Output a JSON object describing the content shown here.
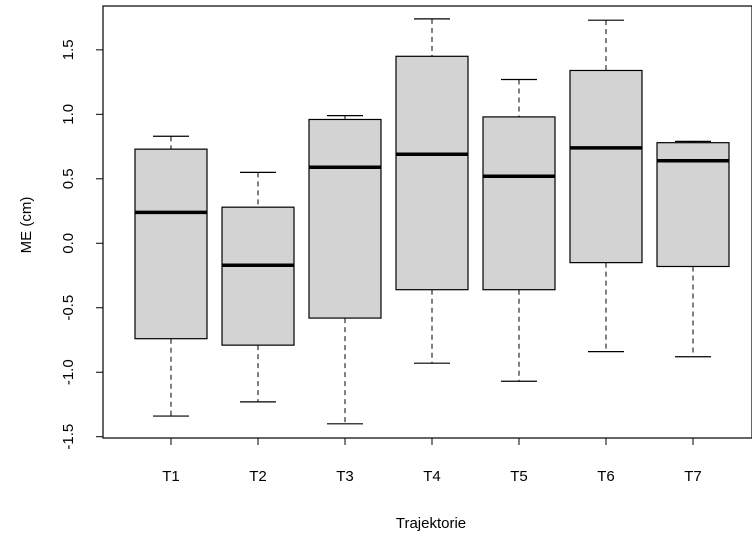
{
  "chart_data": {
    "type": "box",
    "title": "",
    "xlabel": "Trajektorie",
    "ylabel": "ME (cm)",
    "categories": [
      "T1",
      "T2",
      "T3",
      "T4",
      "T5",
      "T6",
      "T7"
    ],
    "boxes": [
      {
        "category": "T1",
        "min": -1.34,
        "q1": -0.74,
        "median": 0.24,
        "q3": 0.73,
        "max": 0.83
      },
      {
        "category": "T2",
        "min": -1.23,
        "q1": -0.79,
        "median": -0.17,
        "q3": 0.28,
        "max": 0.55
      },
      {
        "category": "T3",
        "min": -1.4,
        "q1": -0.58,
        "median": 0.59,
        "q3": 0.96,
        "max": 0.99
      },
      {
        "category": "T4",
        "min": -0.93,
        "q1": -0.36,
        "median": 0.69,
        "q3": 1.45,
        "max": 1.74
      },
      {
        "category": "T5",
        "min": -1.07,
        "q1": -0.36,
        "median": 0.52,
        "q3": 0.98,
        "max": 1.27
      },
      {
        "category": "T6",
        "min": -0.84,
        "q1": -0.15,
        "median": 0.74,
        "q3": 1.34,
        "max": 1.73
      },
      {
        "category": "T7",
        "min": -0.88,
        "q1": -0.18,
        "median": 0.64,
        "q3": 0.78,
        "max": 0.79
      }
    ],
    "yticks": [
      "-1.5",
      "-1.0",
      "-0.5",
      "0.0",
      "0.5",
      "1.0",
      "1.5"
    ],
    "ylim": [
      -1.51,
      1.84
    ],
    "box_fill": "#d3d3d3",
    "line_color": "#000000",
    "grid": false,
    "legend": "none"
  }
}
